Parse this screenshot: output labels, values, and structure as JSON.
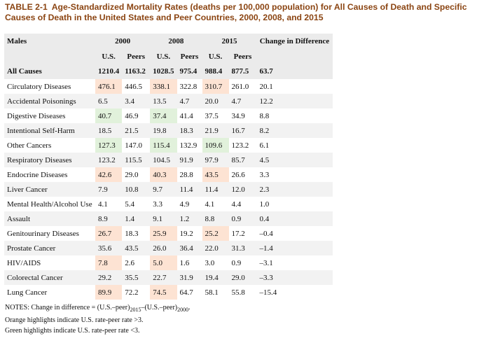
{
  "caption": {
    "label": "TABLE 2-1",
    "text": "Age-Standardized Mortality Rates (deaths per 100,000 population) for All Causes of Death and Specific Causes of Death in the United States and Peer Countries, 2000, 2008, and 2015"
  },
  "header": {
    "group": "Males",
    "y2000": "2000",
    "y2008": "2008",
    "y2015": "2015",
    "change": "Change in Difference",
    "us": "U.S.",
    "peers": "Peers"
  },
  "all_causes": {
    "cause": "All Causes",
    "values": [
      "1210.4",
      "1163.2",
      "1028.5",
      "975.4",
      "988.4",
      "877.5",
      "63.7"
    ]
  },
  "rows": [
    {
      "cause": "Circulatory Diseases",
      "values": [
        "476.1",
        "446.5",
        "338.1",
        "322.8",
        "310.7",
        "261.0",
        "20.1"
      ]
    },
    {
      "cause": "Accidental Poisonings",
      "values": [
        "6.5",
        "3.4",
        "13.5",
        "4.7",
        "20.0",
        "4.7",
        "12.2"
      ]
    },
    {
      "cause": "Digestive Diseases",
      "values": [
        "40.7",
        "46.9",
        "37.4",
        "41.4",
        "37.5",
        "34.9",
        "8.8"
      ]
    },
    {
      "cause": "Intentional Self-Harm",
      "values": [
        "18.5",
        "21.5",
        "19.8",
        "18.3",
        "21.9",
        "16.7",
        "8.2"
      ]
    },
    {
      "cause": "Other Cancers",
      "values": [
        "127.3",
        "147.0",
        "115.4",
        "132.9",
        "109.6",
        "123.2",
        "6.1"
      ]
    },
    {
      "cause": "Respiratory Diseases",
      "values": [
        "123.2",
        "115.5",
        "104.5",
        "91.9",
        "97.9",
        "85.7",
        "4.5"
      ]
    },
    {
      "cause": "Endocrine Diseases",
      "values": [
        "42.6",
        "29.0",
        "40.3",
        "28.8",
        "43.5",
        "26.6",
        "3.3"
      ]
    },
    {
      "cause": "Liver Cancer",
      "values": [
        "7.9",
        "10.8",
        "9.7",
        "11.4",
        "11.4",
        "12.0",
        "2.3"
      ]
    },
    {
      "cause": "Mental Health/Alcohol Use",
      "values": [
        "4.1",
        "5.4",
        "3.3",
        "4.9",
        "4.1",
        "4.4",
        "1.0"
      ]
    },
    {
      "cause": "Assault",
      "values": [
        "8.9",
        "1.4",
        "9.1",
        "1.2",
        "8.8",
        "0.9",
        "0.4"
      ]
    },
    {
      "cause": "Genitourinary Diseases",
      "values": [
        "26.7",
        "18.3",
        "25.9",
        "19.2",
        "25.2",
        "17.2",
        "–0.4"
      ]
    },
    {
      "cause": "Prostate Cancer",
      "values": [
        "35.6",
        "43.5",
        "26.0",
        "36.4",
        "22.0",
        "31.3",
        "–1.4"
      ]
    },
    {
      "cause": "HIV/AIDS",
      "values": [
        "7.8",
        "2.6",
        "5.0",
        "1.6",
        "3.0",
        "0.9",
        "–3.1"
      ]
    },
    {
      "cause": "Colorectal Cancer",
      "values": [
        "29.2",
        "35.5",
        "22.7",
        "31.9",
        "19.4",
        "29.0",
        "–3.3"
      ]
    },
    {
      "cause": "Lung Cancer",
      "values": [
        "89.9",
        "72.2",
        "74.5",
        "64.7",
        "58.1",
        "55.8",
        "–15.4"
      ]
    }
  ],
  "notes": {
    "change_prefix": "NOTES: Change in difference = (U.S.–peer)",
    "sub1": "2015",
    "change_mid": "–(U.S.–peer)",
    "sub2": "2000",
    "change_end": ".",
    "orange": "Orange highlights indicate U.S. rate-peer rate >3.",
    "green": "Green highlights indicate U.S. rate-peer rate <3."
  },
  "colors": {
    "title": "#8b4513",
    "orange_highlight": "#fde3d3",
    "green_highlight": "#e1f1db"
  }
}
